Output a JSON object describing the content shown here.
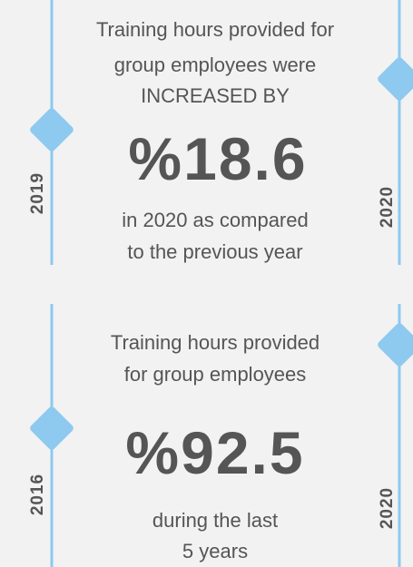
{
  "cards": [
    {
      "left_year": "2019",
      "right_year": "2020",
      "top_lines": [
        "Training hours provided for",
        "group employees were",
        "INCREASED BY"
      ],
      "stat": "%18.6",
      "bottom_lines": [
        "in 2020 as compared",
        "to the previous year"
      ]
    },
    {
      "left_year": "2016",
      "right_year": "2020",
      "top_lines": [
        "Training hours provided",
        "for group employees"
      ],
      "stat": "%92.5",
      "bottom_lines": [
        "during the last",
        "5 years"
      ]
    }
  ]
}
